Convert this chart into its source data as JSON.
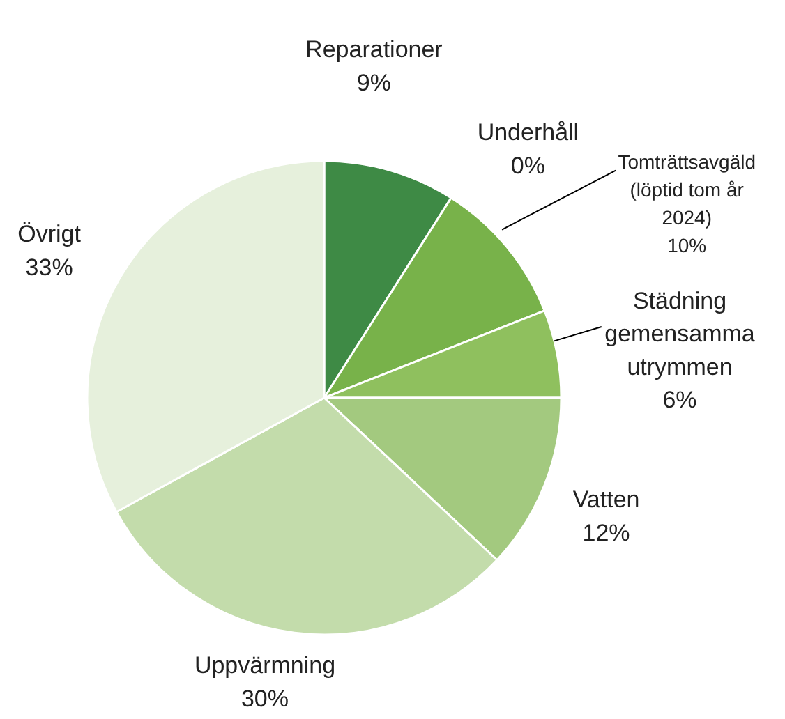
{
  "chart_data": {
    "type": "pie",
    "categories": [
      "Reparationer",
      "Underhåll",
      "Tomträttsavgäld (löptid tom år 2024)",
      "Städning gemensamma utrymmen",
      "Vatten",
      "Uppvärmning",
      "Övrigt"
    ],
    "values": [
      9,
      0,
      10,
      6,
      12,
      30,
      33
    ],
    "value_labels": [
      "9%",
      "0%",
      "10%",
      "6%",
      "12%",
      "30%",
      "33%"
    ],
    "colors": [
      "#3e8a45",
      "#5a9e3e",
      "#78b24a",
      "#8fc05e",
      "#a3c97f",
      "#c3dcab",
      "#e6f0dc"
    ]
  }
}
